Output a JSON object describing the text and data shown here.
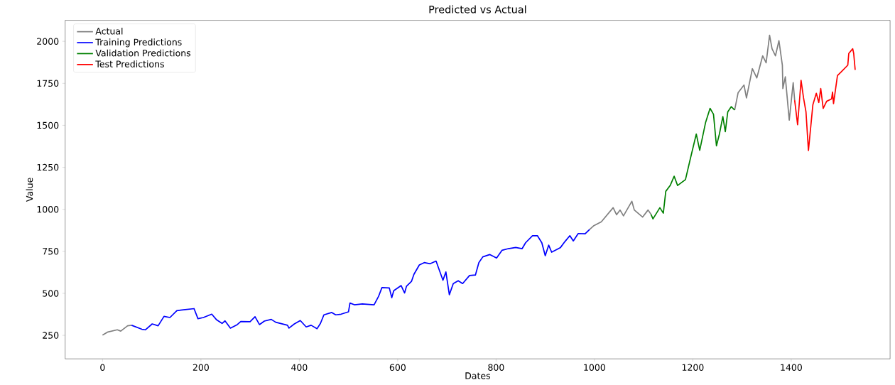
{
  "chart_data": {
    "type": "line",
    "title": "Predicted vs Actual",
    "xlabel": "Dates",
    "ylabel": "Value",
    "xlim": [
      -76,
      1601
    ],
    "ylim": [
      110,
      2125
    ],
    "xticks": [
      0,
      200,
      400,
      600,
      800,
      1000,
      1200,
      1400
    ],
    "yticks": [
      250,
      500,
      750,
      1000,
      1250,
      1500,
      1750,
      2000
    ],
    "legend": "top left",
    "grid": false,
    "marker": "none",
    "line_style": "solid",
    "series": [
      {
        "name": "Actual",
        "color": "#808080",
        "x": [
          0,
          11,
          30,
          37,
          51,
          59,
          null,
          990,
          998,
          1014,
          1026,
          1038,
          1045,
          1052,
          1059,
          1076,
          1081,
          1098,
          1109,
          1115,
          null,
          1285,
          1292,
          1304,
          1309,
          1321,
          1330,
          1342,
          1349,
          1356,
          1361,
          1368,
          1375,
          1382,
          1383,
          1388,
          1396,
          1404,
          1407
        ],
        "values": [
          251,
          270,
          283,
          275,
          307,
          310,
          null,
          880,
          901,
          926,
          968,
          1010,
          968,
          996,
          961,
          1048,
          996,
          954,
          996,
          970,
          null,
          1591,
          1694,
          1740,
          1663,
          1837,
          1782,
          1914,
          1872,
          2036,
          1956,
          1914,
          2004,
          1858,
          1719,
          1789,
          1531,
          1754,
          1649
        ]
      },
      {
        "name": "Training Predictions",
        "color": "#0000ff",
        "x": [
          59,
          80,
          87,
          101,
          113,
          125,
          137,
          151,
          168,
          186,
          194,
          205,
          222,
          232,
          243,
          249,
          260,
          274,
          281,
          300,
          310,
          319,
          329,
          343,
          352,
          376,
          379,
          390,
          402,
          414,
          424,
          436,
          443,
          450,
          466,
          474,
          485,
          500,
          503,
          512,
          528,
          552,
          561,
          568,
          583,
          588,
          592,
          607,
          614,
          618,
          628,
          633,
          644,
          654,
          666,
          678,
          692,
          698,
          705,
          713,
          723,
          732,
          746,
          758,
          765,
          773,
          787,
          801,
          812,
          825,
          840,
          853,
          860,
          874,
          884,
          893,
          900,
          907,
          913,
          931,
          940,
          950,
          957,
          967,
          981,
          990
        ],
        "values": [
          310,
          286,
          283,
          318,
          307,
          363,
          356,
          397,
          403,
          409,
          349,
          356,
          376,
          342,
          321,
          336,
          293,
          314,
          332,
          331,
          361,
          314,
          335,
          345,
          328,
          310,
          293,
          318,
          338,
          300,
          310,
          289,
          321,
          372,
          386,
          372,
          376,
          390,
          442,
          432,
          437,
          432,
          481,
          534,
          532,
          474,
          516,
          546,
          502,
          543,
          571,
          613,
          669,
          683,
          676,
          692,
          578,
          627,
          492,
          558,
          575,
          558,
          606,
          609,
          683,
          717,
          731,
          710,
          756,
          766,
          773,
          766,
          801,
          843,
          843,
          801,
          724,
          787,
          745,
          773,
          808,
          843,
          812,
          856,
          854,
          880
        ]
      },
      {
        "name": "Validation Predictions",
        "color": "#008000",
        "x": [
          1115,
          1119,
          1133,
          1140,
          1145,
          1154,
          1162,
          1169,
          1185,
          1195,
          1207,
          1214,
          1226,
          1235,
          1242,
          1248,
          1254,
          1261,
          1266,
          1271,
          1278,
          1285
        ],
        "values": [
          970,
          943,
          1010,
          977,
          1107,
          1142,
          1197,
          1142,
          1177,
          1302,
          1448,
          1351,
          1518,
          1601,
          1566,
          1378,
          1448,
          1552,
          1462,
          1580,
          1611,
          1591
        ]
      },
      {
        "name": "Test Predictions",
        "color": "#ff0000",
        "x": [
          1407,
          1413,
          1420,
          1425,
          1430,
          1435,
          1444,
          1451,
          1456,
          1460,
          1465,
          1472,
          1482,
          1484,
          1486,
          1494,
          1501,
          1515,
          1517,
          1525,
          1527,
          1530
        ],
        "values": [
          1649,
          1503,
          1768,
          1664,
          1580,
          1350,
          1622,
          1691,
          1636,
          1719,
          1601,
          1643,
          1657,
          1698,
          1629,
          1796,
          1816,
          1858,
          1928,
          1956,
          1928,
          1830
        ]
      }
    ]
  }
}
